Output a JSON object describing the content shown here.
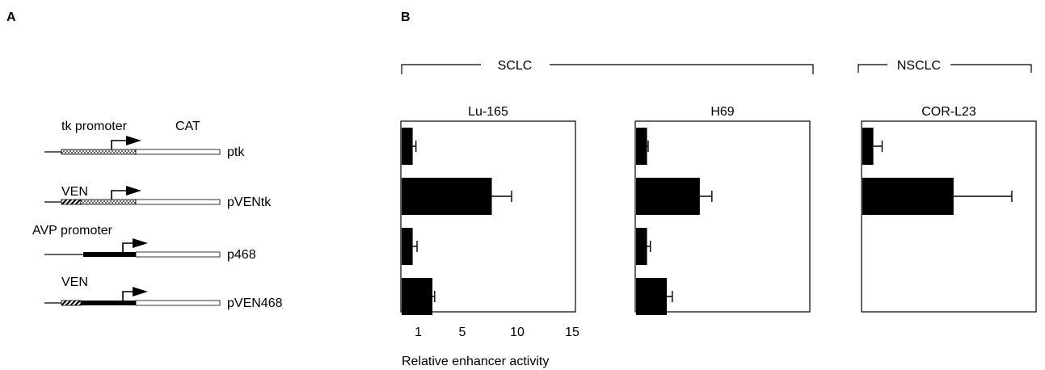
{
  "panels": {
    "a_label": "A",
    "b_label": "B"
  },
  "constructs": [
    {
      "name": "ptk",
      "upper_label": "tk promoter",
      "upper_label2": "CAT",
      "enhancer": false,
      "promoter": "tk"
    },
    {
      "name": "pVENtk",
      "upper_label": "VEN",
      "upper_label2": "",
      "enhancer": true,
      "promoter": "tk"
    },
    {
      "name": "p468",
      "upper_label": "AVP promoter",
      "upper_label2": "",
      "enhancer": false,
      "promoter": "avp"
    },
    {
      "name": "pVEN468",
      "upper_label": "VEN",
      "upper_label2": "",
      "enhancer": true,
      "promoter": "avp"
    }
  ],
  "groups": {
    "sclc": "SCLC",
    "nsclc": "NSCLC"
  },
  "chart_data": [
    {
      "type": "bar",
      "orientation": "horizontal",
      "title": "Lu-165",
      "categories": [
        "ptk",
        "pVENtk",
        "p468",
        "pVEN468"
      ],
      "values": [
        1.0,
        8.2,
        1.0,
        2.8
      ],
      "errors": [
        0.3,
        1.8,
        0.4,
        0.2
      ],
      "xlim": [
        0,
        15
      ],
      "xticks": [
        "1",
        "5",
        "10",
        "15"
      ],
      "xtick_values": [
        1,
        5,
        10,
        15
      ],
      "xlabel": "Relative enhancer activity"
    },
    {
      "type": "bar",
      "orientation": "horizontal",
      "title": "H69",
      "categories": [
        "ptk",
        "pVENtk",
        "p468",
        "pVEN468"
      ],
      "values": [
        1.0,
        5.8,
        1.0,
        2.8
      ],
      "errors": [
        0.1,
        1.1,
        0.3,
        0.5
      ],
      "xlim": [
        0,
        15
      ]
    },
    {
      "type": "bar",
      "orientation": "horizontal",
      "title": "COR-L23",
      "categories": [
        "ptk",
        "pVENtk"
      ],
      "values": [
        1.0,
        8.3
      ],
      "errors": [
        0.8,
        5.3
      ],
      "xlim": [
        0,
        15
      ]
    }
  ]
}
